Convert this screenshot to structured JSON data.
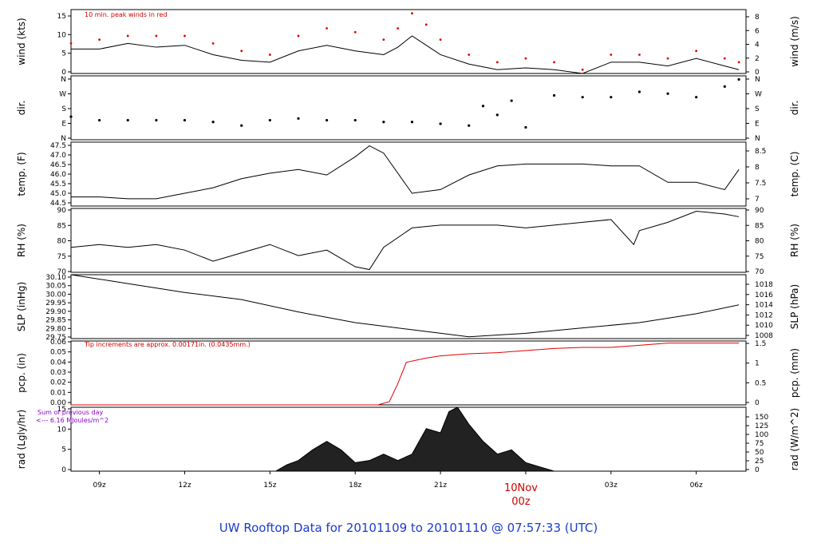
{
  "footer_title": "UW Rooftop Data for 20101109  to  20101110 @ 07:57:33  (UTC)",
  "time_axis": {
    "ticks": [
      "09z",
      "12z",
      "15z",
      "18z",
      "21z",
      "03z",
      "06z"
    ],
    "date_marker": {
      "date": "10Nov",
      "time": "00z"
    }
  },
  "colors": {
    "line": "#000000",
    "peak": "#e00000",
    "precip": "#e00000",
    "note_red": "#d00000",
    "note_purple": "#8a00c8",
    "title": "#1a3cd0"
  },
  "chart_data": [
    {
      "type": "line",
      "panel": "wind",
      "ylabel_left": "wind (kts)",
      "ylabel_right": "wind (m/s)",
      "left_ticks": [
        "0",
        "5",
        "10",
        "15"
      ],
      "right_ticks": [
        "0",
        "2",
        "4",
        "6",
        "8"
      ],
      "ylim_left": [
        0,
        17
      ],
      "ylim_right": [
        0,
        8.75
      ],
      "annotation": "10 min. peak winds in red",
      "x_hours": [
        8,
        9,
        10,
        11,
        12,
        13,
        14,
        15,
        16,
        17,
        18,
        19,
        19.5,
        20,
        20.5,
        21,
        22,
        23,
        24,
        25,
        26,
        27,
        28,
        29,
        30,
        31,
        31.5
      ],
      "series": [
        {
          "values": [
            6.5,
            6.5,
            8,
            7,
            7.5,
            5,
            3.5,
            3,
            6,
            7.5,
            6,
            5,
            7,
            10,
            7.5,
            5,
            2.5,
            1,
            1.5,
            1,
            0,
            3,
            3,
            2,
            4,
            2,
            1
          ]
        },
        {
          "values": [
            8,
            9,
            10,
            10,
            10,
            8,
            6,
            5,
            10,
            12,
            11,
            9,
            12,
            16,
            13,
            9,
            5,
            3,
            4,
            3,
            1,
            5,
            5,
            4,
            6,
            4,
            3
          ]
        }
      ]
    },
    {
      "type": "scatter",
      "panel": "dir",
      "ylabel_left": "dir.",
      "ylabel_right": "dir.",
      "left_ticks": [
        "N",
        "E",
        "S",
        "W",
        "N"
      ],
      "right_ticks": [
        "N",
        "E",
        "S",
        "W",
        "N"
      ],
      "ylim": [
        0,
        360
      ],
      "x_hours": [
        8,
        9,
        10,
        11,
        12,
        13,
        14,
        15,
        16,
        17,
        18,
        19,
        20,
        21,
        22,
        22.5,
        23,
        23.5,
        24,
        25,
        26,
        27,
        28,
        29,
        30,
        31,
        31.5
      ],
      "values": [
        130,
        110,
        110,
        110,
        110,
        100,
        80,
        110,
        120,
        110,
        110,
        100,
        100,
        90,
        80,
        190,
        140,
        220,
        70,
        250,
        240,
        240,
        270,
        260,
        240,
        300,
        340
      ]
    },
    {
      "type": "line",
      "panel": "temp",
      "ylabel_left": "temp. (F)",
      "ylabel_right": "temp. (C)",
      "left_ticks": [
        "44.5",
        "45.0",
        "45.5",
        "46.0",
        "46.5",
        "47.0",
        "47.5"
      ],
      "right_ticks": [
        "7",
        "7.5",
        "8",
        "8.5"
      ],
      "ylim_left": [
        44.3,
        47.8
      ],
      "ylim_right": [
        6.83,
        8.78
      ],
      "x_hours": [
        8,
        9,
        10,
        11,
        12,
        13,
        14,
        15,
        16,
        17,
        18,
        18.5,
        19,
        20,
        21,
        22,
        23,
        24,
        25,
        26,
        27,
        28,
        29,
        30,
        31,
        31.5
      ],
      "values": [
        44.8,
        44.8,
        44.7,
        44.7,
        45.0,
        45.3,
        45.8,
        46.1,
        46.3,
        46.0,
        47.0,
        47.6,
        47.2,
        45.0,
        45.2,
        46.0,
        46.5,
        46.6,
        46.6,
        46.6,
        46.5,
        46.5,
        45.6,
        45.6,
        45.2,
        46.3
      ]
    },
    {
      "type": "line",
      "panel": "rh",
      "ylabel_left": "RH (%)",
      "ylabel_right": "RH (%)",
      "left_ticks": [
        "70",
        "75",
        "80",
        "85",
        "90"
      ],
      "right_ticks": [
        "70",
        "75",
        "80",
        "85",
        "90"
      ],
      "ylim": [
        67,
        90
      ],
      "x_hours": [
        8,
        9,
        10,
        11,
        12,
        13,
        14,
        15,
        16,
        17,
        18,
        18.5,
        19,
        20,
        21,
        22,
        23,
        24,
        25,
        26,
        27,
        27.8,
        28,
        29,
        30,
        31,
        31.5
      ],
      "values": [
        76,
        77,
        76,
        77,
        75,
        71,
        74,
        77,
        73,
        75,
        69,
        68,
        76,
        83,
        84,
        84,
        84,
        83,
        84,
        85,
        86,
        77,
        82,
        85,
        89,
        88,
        87
      ]
    },
    {
      "type": "line",
      "panel": "slp",
      "ylabel_left": "SLP (inHg)",
      "ylabel_right": "SLP (hPa)",
      "left_ticks": [
        "29.75",
        "29.80",
        "29.85",
        "29.90",
        "29.95",
        "30.00",
        "30.05",
        "30.10"
      ],
      "right_ticks": [
        "1008",
        "1010",
        "1012",
        "1014",
        "1016",
        "1018"
      ],
      "ylim_left": [
        29.75,
        30.11
      ],
      "ylim_right": [
        1007.5,
        1019.6
      ],
      "x_hours": [
        8,
        10,
        12,
        14,
        16,
        18,
        20,
        22,
        24,
        26,
        28,
        30,
        31.5
      ],
      "values": [
        30.11,
        30.06,
        30.01,
        29.97,
        29.9,
        29.84,
        29.8,
        29.76,
        29.78,
        29.81,
        29.84,
        29.89,
        29.94
      ]
    },
    {
      "type": "line",
      "panel": "pcp",
      "ylabel_left": "pcp. (in)",
      "ylabel_right": "pcp. (mm)",
      "left_ticks": [
        "0.00",
        "0.01",
        "0.02",
        "0.03",
        "0.04",
        "0.05",
        "0.06"
      ],
      "right_ticks": [
        "0",
        "0.5",
        "1",
        "1.5"
      ],
      "ylim_left": [
        0,
        0.06
      ],
      "ylim_right": [
        0,
        1.524
      ],
      "annotation": "Tip increments are approx. 0.00171in. (0.0435mm.)",
      "x_hours": [
        8,
        18.8,
        19.2,
        19.5,
        19.8,
        20.5,
        21,
        22,
        23,
        24,
        25,
        26,
        27,
        28,
        29,
        31.5
      ],
      "values": [
        0,
        0,
        0.003,
        0.02,
        0.04,
        0.044,
        0.046,
        0.048,
        0.049,
        0.051,
        0.053,
        0.054,
        0.054,
        0.056,
        0.058,
        0.058
      ]
    },
    {
      "type": "area",
      "panel": "rad",
      "ylabel_left": "rad (Lgly/hr)",
      "ylabel_right": "rad (W/m^2)",
      "left_ticks": [
        "0",
        "5",
        "10",
        "15"
      ],
      "right_ticks": [
        "0",
        "25",
        "50",
        "75",
        "100",
        "125",
        "150"
      ],
      "ylim_left": [
        0,
        15
      ],
      "ylim_right": [
        0,
        174
      ],
      "annotation": [
        "Sum of previous day",
        "<--- 6.16 MJoules/m^2"
      ],
      "x_hours": [
        15.2,
        15.6,
        16,
        16.5,
        17,
        17.5,
        18,
        18.5,
        19,
        19.5,
        20,
        20.5,
        21,
        21.3,
        21.6,
        22,
        22.5,
        23,
        23.5,
        24,
        24.5,
        25
      ],
      "values": [
        0,
        1.5,
        2.5,
        5,
        7,
        5,
        2,
        2.5,
        4,
        2.5,
        4,
        10,
        9,
        14,
        15,
        11,
        7,
        4,
        5,
        2,
        1,
        0
      ]
    }
  ]
}
